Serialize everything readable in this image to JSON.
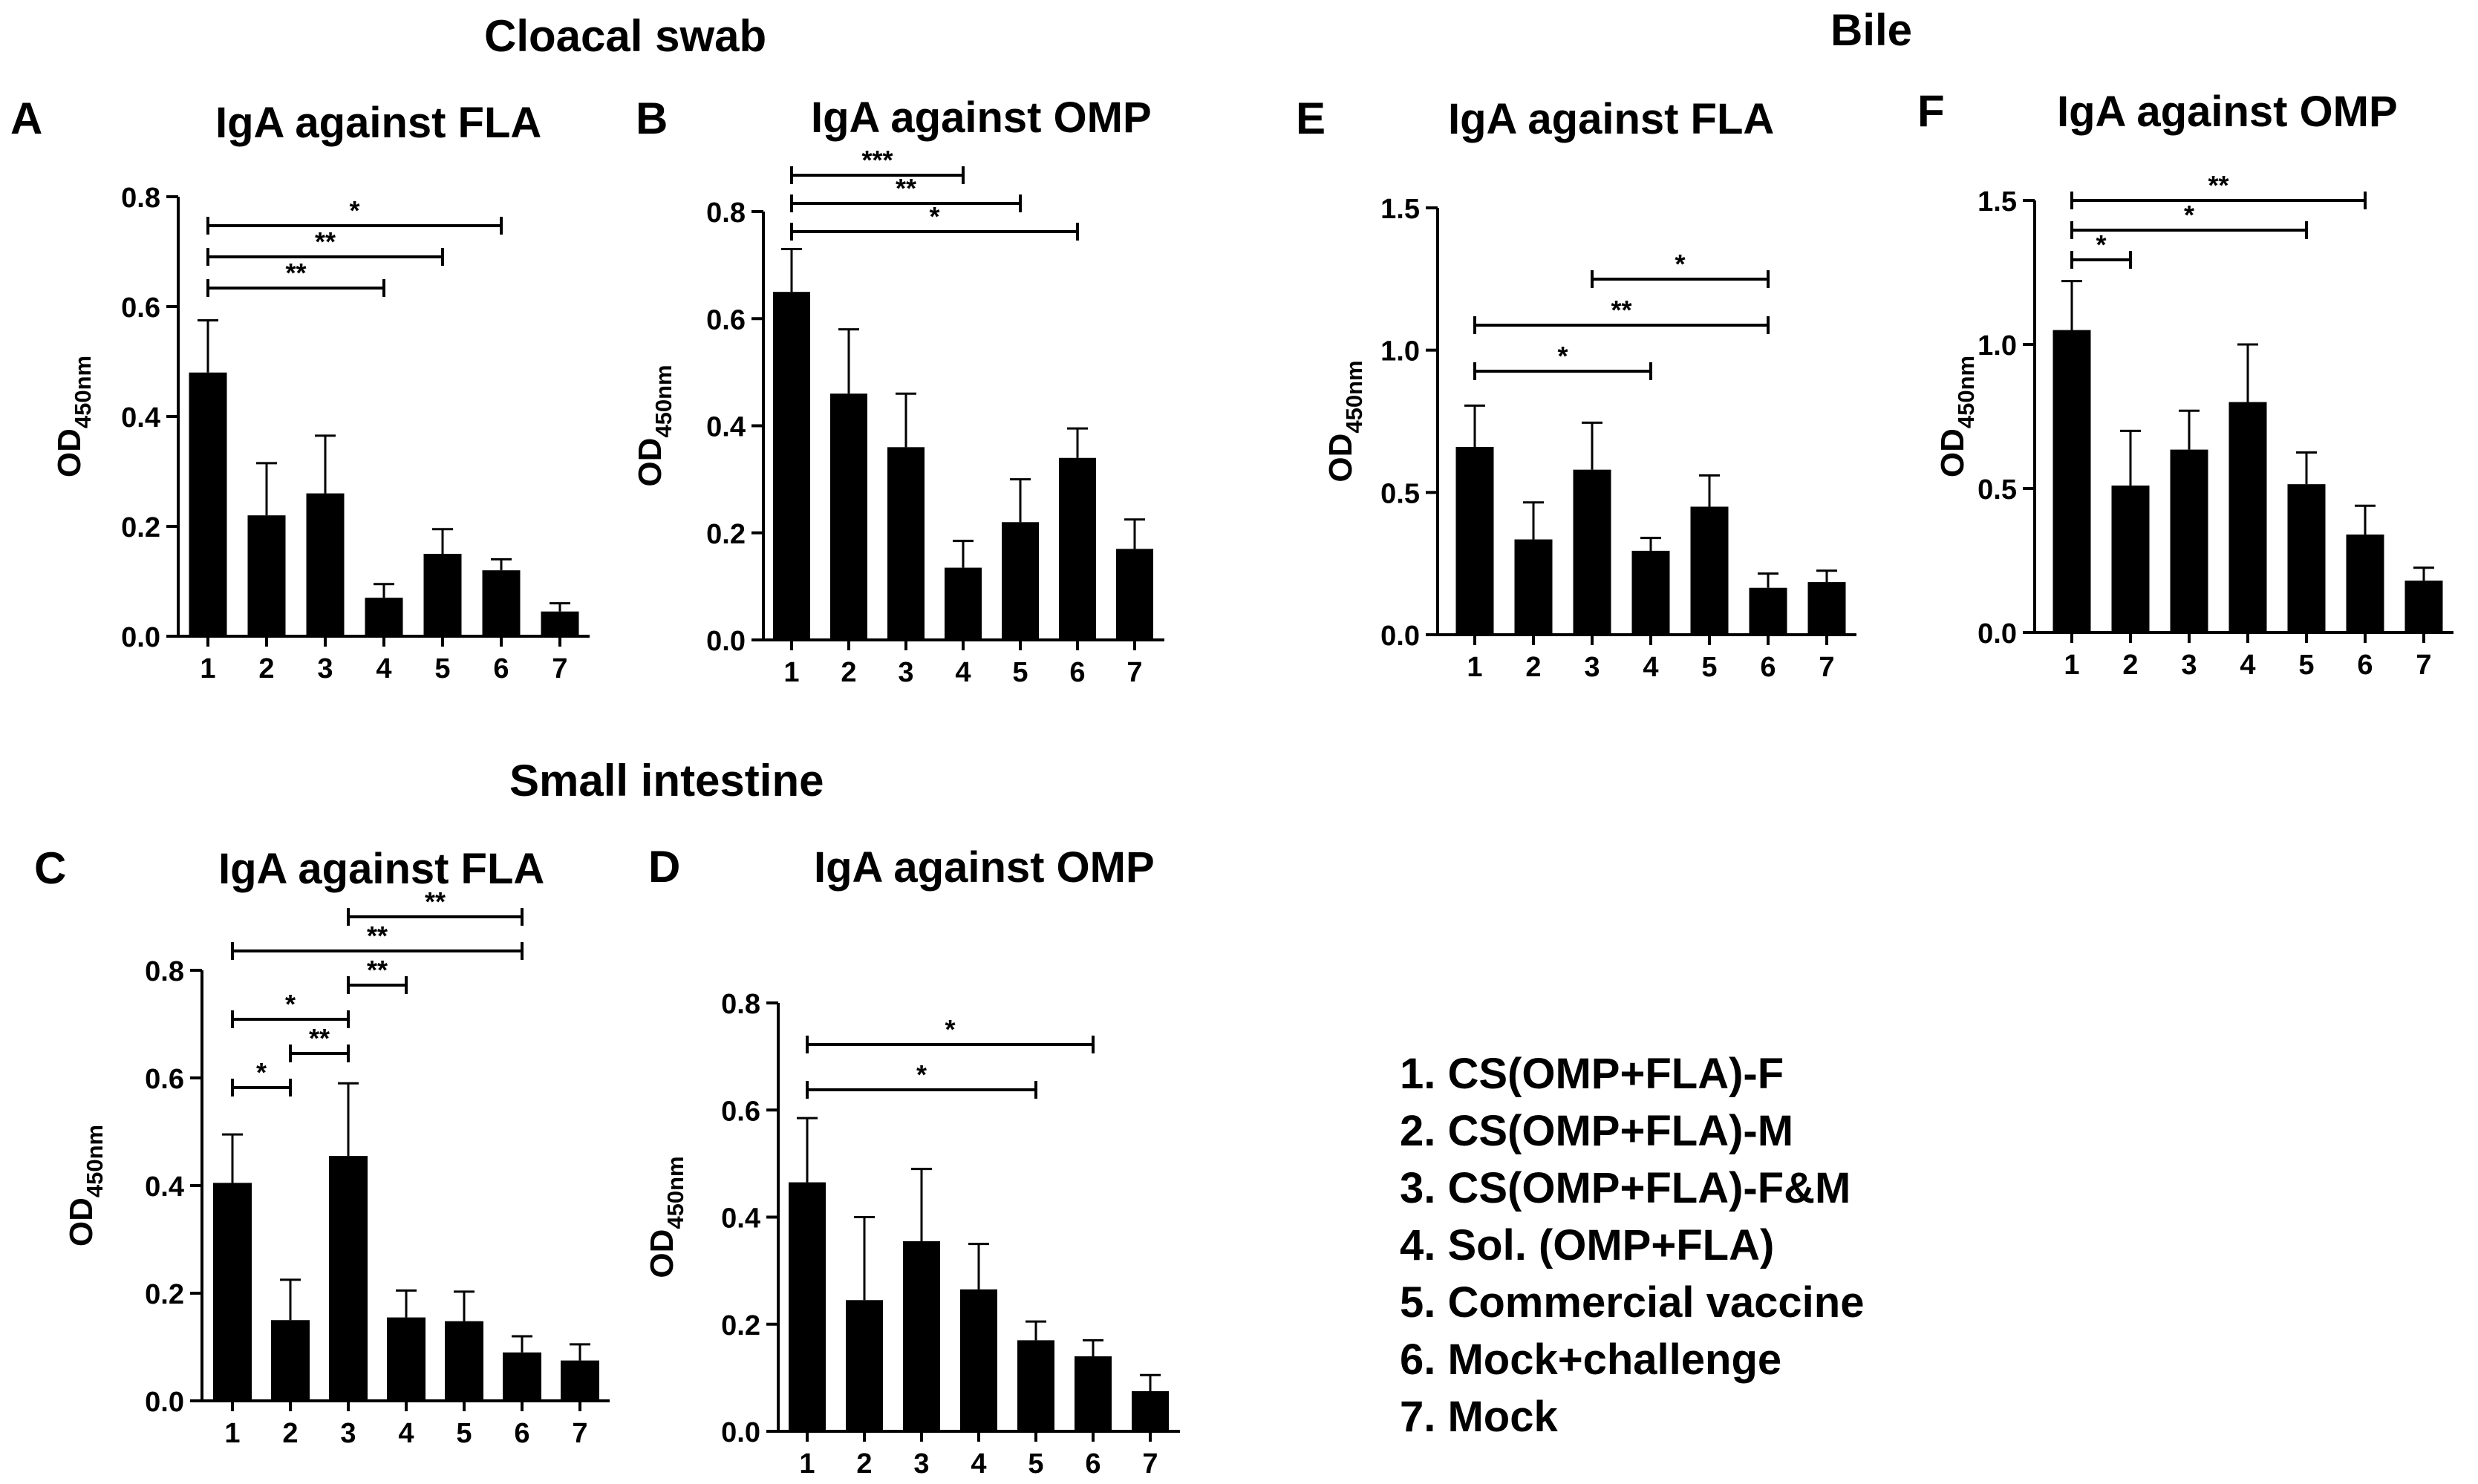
{
  "sections": {
    "cloacal": "Cloacal swab",
    "bile": "Bile",
    "small_intestine": "Small intestine"
  },
  "legend": {
    "items": [
      "1. CS(OMP+FLA)-F",
      "2. CS(OMP+FLA)-M",
      "3. CS(OMP+FLA)-F&M",
      "4. Sol. (OMP+FLA)",
      "5. Commercial vaccine",
      "6. Mock+challenge",
      "7. Mock"
    ]
  },
  "chart_data": [
    {
      "panel": "A",
      "type": "bar",
      "title": "IgA against FLA",
      "ylabel": "OD",
      "ylabel_sub": "450nm",
      "categories": [
        "1",
        "2",
        "3",
        "4",
        "5",
        "6",
        "7"
      ],
      "values": [
        0.48,
        0.22,
        0.26,
        0.07,
        0.15,
        0.12,
        0.045
      ],
      "errors": [
        0.095,
        0.095,
        0.105,
        0.025,
        0.045,
        0.02,
        0.015
      ],
      "ylim": [
        0,
        0.8
      ],
      "yticks": [
        {
          "v": 0,
          "t": "0.0"
        },
        {
          "v": 0.2,
          "t": "0.2"
        },
        {
          "v": 0.4,
          "t": "0.4"
        },
        {
          "v": 0.6,
          "t": "0.6"
        },
        {
          "v": 0.8,
          "t": "0.8"
        }
      ],
      "significance": [
        {
          "from": 1,
          "to": 4,
          "label": "**"
        },
        {
          "from": 1,
          "to": 5,
          "label": "**"
        },
        {
          "from": 1,
          "to": 6,
          "label": "*"
        }
      ]
    },
    {
      "panel": "B",
      "type": "bar",
      "title": "IgA against OMP",
      "ylabel": "OD",
      "ylabel_sub": "450nm",
      "categories": [
        "1",
        "2",
        "3",
        "4",
        "5",
        "6",
        "7"
      ],
      "values": [
        0.65,
        0.46,
        0.36,
        0.135,
        0.22,
        0.34,
        0.17
      ],
      "errors": [
        0.08,
        0.12,
        0.1,
        0.05,
        0.08,
        0.055,
        0.055
      ],
      "ylim": [
        0,
        0.8
      ],
      "yticks": [
        {
          "v": 0,
          "t": "0.0"
        },
        {
          "v": 0.2,
          "t": "0.2"
        },
        {
          "v": 0.4,
          "t": "0.4"
        },
        {
          "v": 0.6,
          "t": "0.6"
        },
        {
          "v": 0.8,
          "t": "0.8"
        }
      ],
      "significance": [
        {
          "from": 1,
          "to": 6,
          "label": "*"
        },
        {
          "from": 1,
          "to": 5,
          "label": "**"
        },
        {
          "from": 1,
          "to": 4,
          "label": "***"
        }
      ]
    },
    {
      "panel": "C",
      "type": "bar",
      "title": "IgA against FLA",
      "ylabel": "OD",
      "ylabel_sub": "450nm",
      "categories": [
        "1",
        "2",
        "3",
        "4",
        "5",
        "6",
        "7"
      ],
      "values": [
        0.405,
        0.15,
        0.455,
        0.155,
        0.148,
        0.09,
        0.075
      ],
      "errors": [
        0.09,
        0.075,
        0.135,
        0.05,
        0.055,
        0.03,
        0.03
      ],
      "ylim": [
        0,
        0.8
      ],
      "yticks": [
        {
          "v": 0,
          "t": "0.0"
        },
        {
          "v": 0.2,
          "t": "0.2"
        },
        {
          "v": 0.4,
          "t": "0.4"
        },
        {
          "v": 0.6,
          "t": "0.6"
        },
        {
          "v": 0.8,
          "t": "0.8"
        }
      ],
      "significance": [
        {
          "from": 1,
          "to": 2,
          "label": "*"
        },
        {
          "from": 2,
          "to": 3,
          "label": "**"
        },
        {
          "from": 1,
          "to": 3,
          "label": "*"
        },
        {
          "from": 3,
          "to": 4,
          "label": "**"
        },
        {
          "from": 1,
          "to": 6,
          "label": "**"
        },
        {
          "from": 3,
          "to": 6,
          "label": "**"
        }
      ]
    },
    {
      "panel": "D",
      "type": "bar",
      "title": "IgA against OMP",
      "ylabel": "OD",
      "ylabel_sub": "450nm",
      "categories": [
        "1",
        "2",
        "3",
        "4",
        "5",
        "6",
        "7"
      ],
      "values": [
        0.465,
        0.245,
        0.355,
        0.265,
        0.17,
        0.14,
        0.075
      ],
      "errors": [
        0.12,
        0.155,
        0.135,
        0.085,
        0.035,
        0.03,
        0.03
      ],
      "ylim": [
        0,
        0.8
      ],
      "yticks": [
        {
          "v": 0,
          "t": "0.0"
        },
        {
          "v": 0.2,
          "t": "0.2"
        },
        {
          "v": 0.4,
          "t": "0.4"
        },
        {
          "v": 0.6,
          "t": "0.6"
        },
        {
          "v": 0.8,
          "t": "0.8"
        }
      ],
      "significance": [
        {
          "from": 1,
          "to": 5,
          "label": "*"
        },
        {
          "from": 1,
          "to": 6,
          "label": "*"
        }
      ]
    },
    {
      "panel": "E",
      "type": "bar",
      "title": "IgA against FLA",
      "ylabel": "OD",
      "ylabel_sub": "450nm",
      "categories": [
        "1",
        "2",
        "3",
        "4",
        "5",
        "6",
        "7"
      ],
      "values": [
        0.66,
        0.335,
        0.58,
        0.295,
        0.45,
        0.165,
        0.185
      ],
      "errors": [
        0.145,
        0.13,
        0.165,
        0.045,
        0.11,
        0.05,
        0.04
      ],
      "ylim": [
        0,
        1.5
      ],
      "yticks": [
        {
          "v": 0,
          "t": "0.0"
        },
        {
          "v": 0.5,
          "t": "0.5"
        },
        {
          "v": 1.0,
          "t": "1.0"
        },
        {
          "v": 1.5,
          "t": "1.5"
        }
      ],
      "significance": [
        {
          "from": 1,
          "to": 4,
          "label": "*"
        },
        {
          "from": 1,
          "to": 6,
          "label": "**"
        },
        {
          "from": 3,
          "to": 6,
          "label": "*"
        }
      ]
    },
    {
      "panel": "F",
      "type": "bar",
      "title": "IgA against OMP",
      "ylabel": "OD",
      "ylabel_sub": "450nm",
      "categories": [
        "1",
        "2",
        "3",
        "4",
        "5",
        "6",
        "7"
      ],
      "values": [
        1.05,
        0.51,
        0.635,
        0.8,
        0.515,
        0.34,
        0.18
      ],
      "errors": [
        0.17,
        0.19,
        0.135,
        0.2,
        0.11,
        0.1,
        0.045
      ],
      "ylim": [
        0,
        1.5
      ],
      "yticks": [
        {
          "v": 0,
          "t": "0.0"
        },
        {
          "v": 0.5,
          "t": "0.5"
        },
        {
          "v": 1.0,
          "t": "1.0"
        },
        {
          "v": 1.5,
          "t": "1.5"
        }
      ],
      "significance": [
        {
          "from": 1,
          "to": 2,
          "label": "*"
        },
        {
          "from": 1,
          "to": 5,
          "label": "*"
        },
        {
          "from": 1,
          "to": 6,
          "label": "**"
        }
      ]
    }
  ]
}
